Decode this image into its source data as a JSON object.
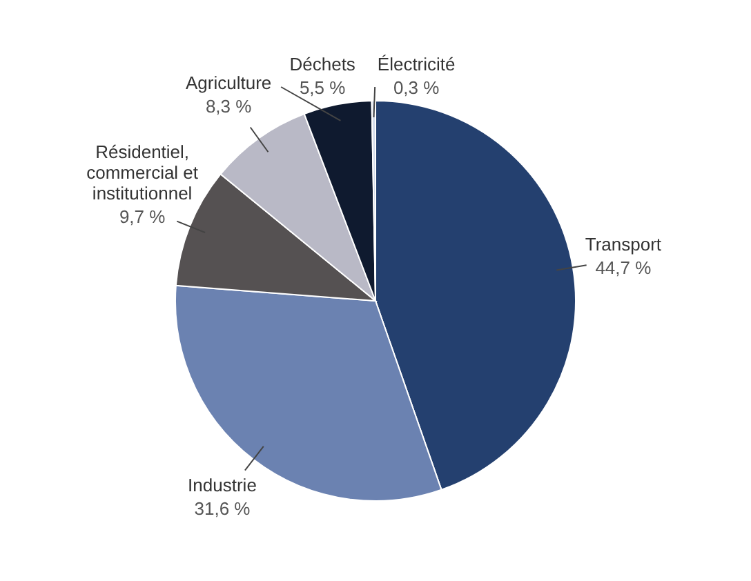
{
  "chart_data": {
    "type": "pie",
    "categories": [
      "Transport",
      "Industrie",
      "Résidentiel, commercial et institutionnel",
      "Agriculture",
      "Déchets",
      "Électricité"
    ],
    "values": [
      44.7,
      31.6,
      9.7,
      8.3,
      5.5,
      0.3
    ],
    "value_labels": [
      "44,7 %",
      "31,6 %",
      "9,7 %",
      "8,3 %",
      "5,5 %",
      "0,3 %"
    ],
    "colors": [
      "#24406f",
      "#6b82b1",
      "#555152",
      "#b9b9c6",
      "#0f1a2f",
      "#d3dbea"
    ],
    "legend": false
  }
}
